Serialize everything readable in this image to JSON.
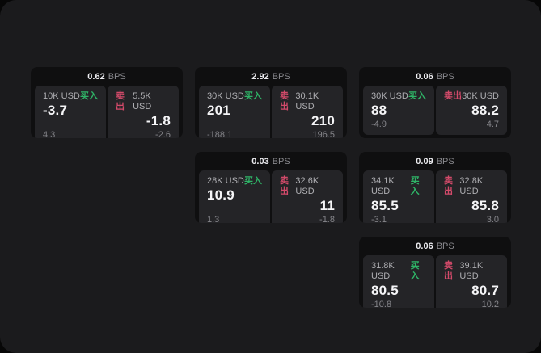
{
  "page": {
    "bg_outer": "#070707",
    "bg_surface": "#1b1b1d",
    "bg_card": "#0f0f10",
    "bg_panel": "#242427",
    "buy_color": "#2fb467",
    "sell_color": "#d34a6a"
  },
  "labels": {
    "bps": "BPS",
    "buy": "买入",
    "sell": "卖出"
  },
  "cards": [
    {
      "bps": "0.62",
      "row": 1,
      "col": 1,
      "buy": {
        "amount": "10K USD",
        "value": "-3.7",
        "sub": "4.3"
      },
      "sell": {
        "amount": "5.5K USD",
        "value": "-1.8",
        "sub": "-2.6"
      }
    },
    {
      "bps": "2.92",
      "row": 1,
      "col": 2,
      "buy": {
        "amount": "30K USD",
        "value": "201",
        "sub": "-188.1"
      },
      "sell": {
        "amount": "30.1K USD",
        "value": "210",
        "sub": "196.5"
      }
    },
    {
      "bps": "0.06",
      "row": 1,
      "col": 3,
      "buy": {
        "amount": "30K USD",
        "value": "88",
        "sub": "-4.9"
      },
      "sell": {
        "amount": "30K USD",
        "value": "88.2",
        "sub": "4.7"
      }
    },
    {
      "bps": "0.03",
      "row": 2,
      "col": 2,
      "buy": {
        "amount": "28K USD",
        "value": "10.9",
        "sub": "1.3"
      },
      "sell": {
        "amount": "32.6K USD",
        "value": "11",
        "sub": "-1.8"
      }
    },
    {
      "bps": "0.09",
      "row": 2,
      "col": 3,
      "buy": {
        "amount": "34.1K USD",
        "value": "85.5",
        "sub": "-3.1"
      },
      "sell": {
        "amount": "32.8K USD",
        "value": "85.8",
        "sub": "3.0"
      }
    },
    {
      "bps": "0.06",
      "row": 3,
      "col": 3,
      "buy": {
        "amount": "31.8K USD",
        "value": "80.5",
        "sub": "-10.8"
      },
      "sell": {
        "amount": "39.1K USD",
        "value": "80.7",
        "sub": "10.2"
      }
    }
  ]
}
